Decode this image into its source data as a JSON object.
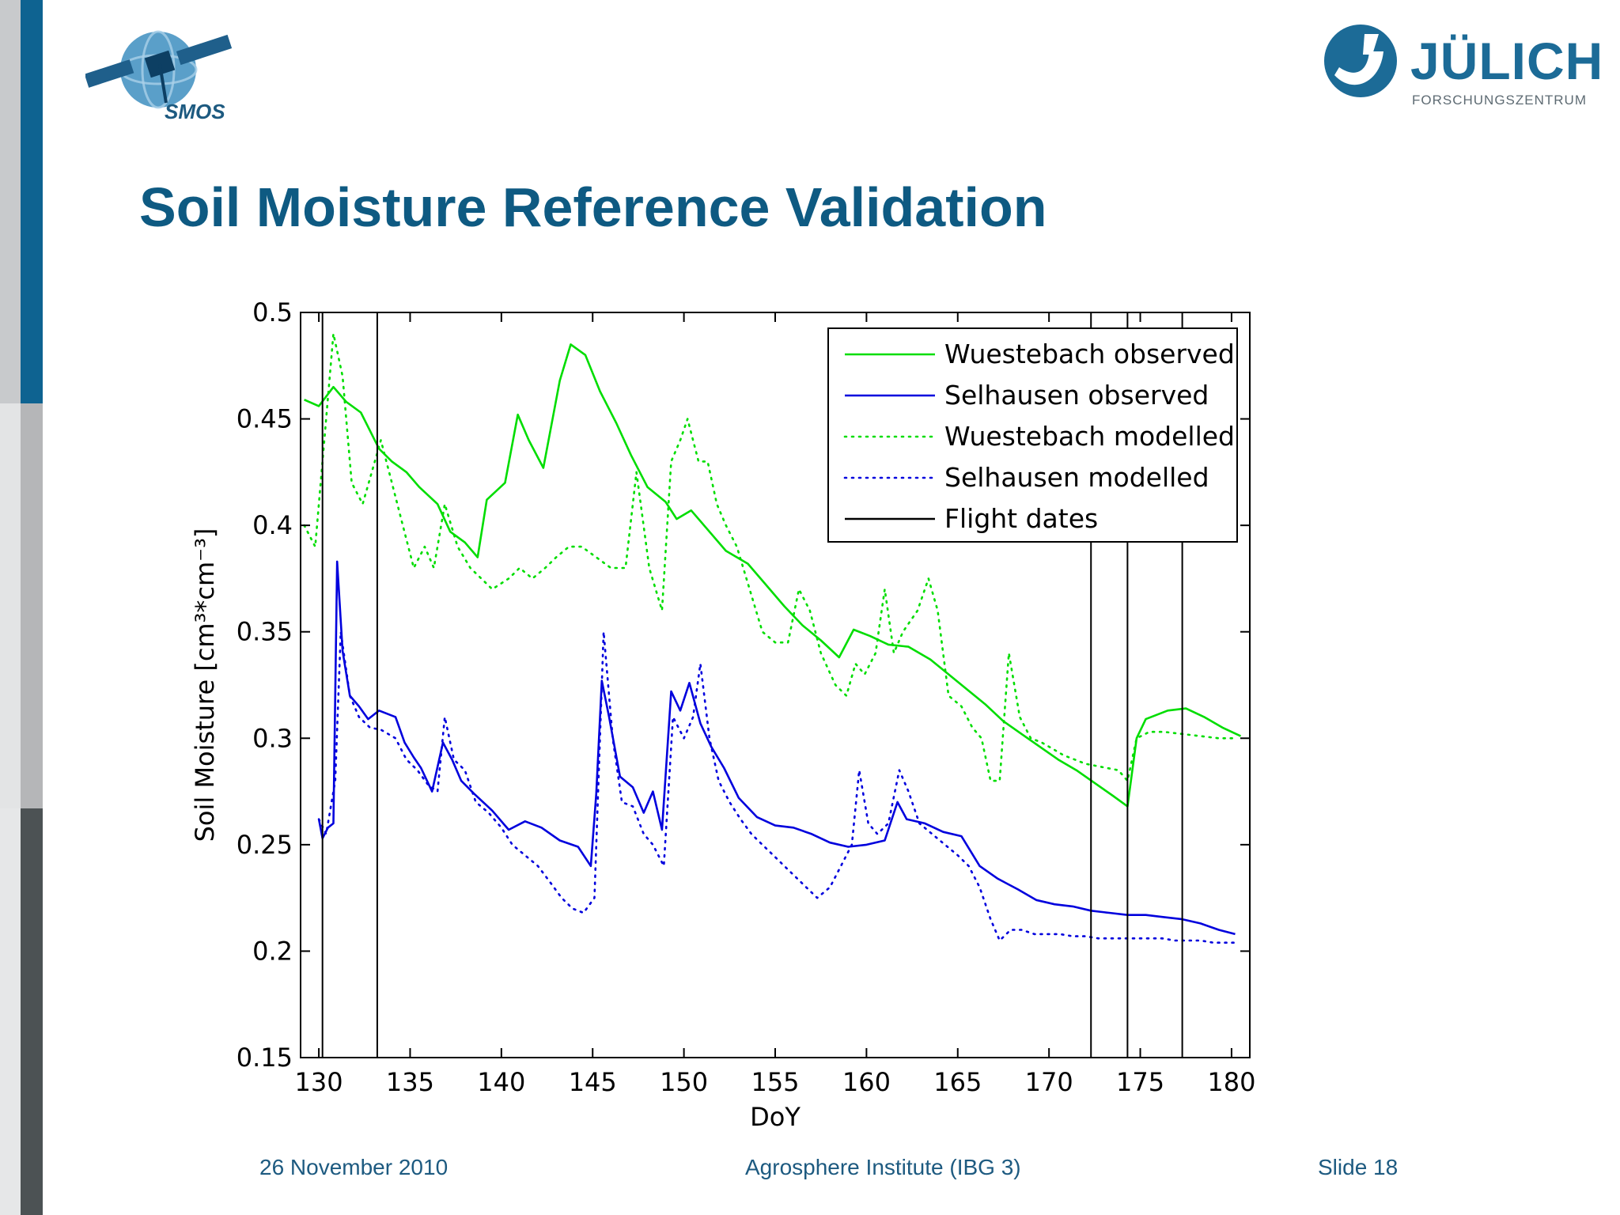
{
  "slide": {
    "title": "Soil Moisture Reference Validation",
    "smos_logo_text": "SMOS",
    "julich_name": "JÜLICH",
    "julich_sub": "FORSCHUNGSZENTRUM",
    "colors": {
      "title": "#0e5a82",
      "sidebar_top": "#0e6391",
      "sidebar_mid": "#b5b6b8",
      "sidebar_bottom": "#4c5254"
    }
  },
  "footer": {
    "date": "26 November 2010",
    "institute": "Agrosphere Institute (IBG 3)",
    "slide_number": "Slide 18"
  },
  "chart_data": {
    "type": "line",
    "xlabel": "DoY",
    "ylabel": "Soil Moisture [cm³*cm⁻³]",
    "xlim": [
      129,
      181
    ],
    "ylim": [
      0.15,
      0.5
    ],
    "xticks": [
      130,
      135,
      140,
      145,
      150,
      155,
      160,
      165,
      170,
      175,
      180
    ],
    "yticks": [
      0.15,
      0.2,
      0.25,
      0.3,
      0.35,
      0.4,
      0.45,
      0.5
    ],
    "grid": false,
    "legend_position": "top-right",
    "flight_dates": [
      130.2,
      133.2,
      172.3,
      174.3,
      177.3
    ],
    "series": [
      {
        "name": "Wuestebach observed",
        "color": "#00dd00",
        "style": "solid",
        "points": [
          [
            129.2,
            0.459
          ],
          [
            130,
            0.456
          ],
          [
            130.8,
            0.465
          ],
          [
            131.5,
            0.458
          ],
          [
            132.3,
            0.453
          ],
          [
            133.3,
            0.436
          ],
          [
            134,
            0.43
          ],
          [
            134.8,
            0.425
          ],
          [
            135.5,
            0.418
          ],
          [
            136.5,
            0.41
          ],
          [
            137.2,
            0.397
          ],
          [
            138,
            0.392
          ],
          [
            138.7,
            0.385
          ],
          [
            139.2,
            0.412
          ],
          [
            140.2,
            0.42
          ],
          [
            140.9,
            0.452
          ],
          [
            141.5,
            0.44
          ],
          [
            142.3,
            0.427
          ],
          [
            143.2,
            0.468
          ],
          [
            143.8,
            0.485
          ],
          [
            144.6,
            0.48
          ],
          [
            145.4,
            0.463
          ],
          [
            146.3,
            0.448
          ],
          [
            147.1,
            0.433
          ],
          [
            148,
            0.418
          ],
          [
            149,
            0.411
          ],
          [
            149.6,
            0.403
          ],
          [
            150.4,
            0.407
          ],
          [
            151.2,
            0.399
          ],
          [
            152.3,
            0.388
          ],
          [
            153.5,
            0.382
          ],
          [
            154.5,
            0.372
          ],
          [
            155.5,
            0.362
          ],
          [
            156.5,
            0.353
          ],
          [
            157.5,
            0.346
          ],
          [
            158.5,
            0.338
          ],
          [
            159.3,
            0.351
          ],
          [
            160.2,
            0.348
          ],
          [
            161.2,
            0.344
          ],
          [
            162.3,
            0.343
          ],
          [
            163.5,
            0.337
          ],
          [
            164.5,
            0.33
          ],
          [
            165.5,
            0.323
          ],
          [
            166.5,
            0.316
          ],
          [
            167.5,
            0.308
          ],
          [
            168.5,
            0.302
          ],
          [
            169.5,
            0.296
          ],
          [
            170.5,
            0.29
          ],
          [
            171.5,
            0.285
          ],
          [
            172.5,
            0.279
          ],
          [
            173.5,
            0.273
          ],
          [
            174.3,
            0.268
          ],
          [
            174.8,
            0.3
          ],
          [
            175.3,
            0.309
          ],
          [
            176.5,
            0.313
          ],
          [
            177.5,
            0.314
          ],
          [
            178.5,
            0.31
          ],
          [
            179.5,
            0.305
          ],
          [
            180.5,
            0.301
          ]
        ]
      },
      {
        "name": "Selhausen observed",
        "color": "#0000dd",
        "style": "solid",
        "points": [
          [
            130,
            0.262
          ],
          [
            130.2,
            0.253
          ],
          [
            130.5,
            0.258
          ],
          [
            130.8,
            0.26
          ],
          [
            131,
            0.383
          ],
          [
            131.3,
            0.341
          ],
          [
            131.7,
            0.32
          ],
          [
            132.2,
            0.315
          ],
          [
            132.7,
            0.309
          ],
          [
            133.3,
            0.313
          ],
          [
            134.2,
            0.31
          ],
          [
            134.7,
            0.298
          ],
          [
            135.2,
            0.291
          ],
          [
            135.6,
            0.286
          ],
          [
            136.2,
            0.275
          ],
          [
            136.8,
            0.298
          ],
          [
            137.3,
            0.29
          ],
          [
            137.8,
            0.28
          ],
          [
            138.5,
            0.274
          ],
          [
            139.5,
            0.266
          ],
          [
            140.4,
            0.257
          ],
          [
            141.3,
            0.261
          ],
          [
            142.2,
            0.258
          ],
          [
            143.2,
            0.252
          ],
          [
            144.2,
            0.249
          ],
          [
            144.9,
            0.24
          ],
          [
            145.2,
            0.274
          ],
          [
            145.5,
            0.327
          ],
          [
            145.9,
            0.31
          ],
          [
            146.5,
            0.282
          ],
          [
            147.2,
            0.277
          ],
          [
            147.8,
            0.265
          ],
          [
            148.3,
            0.275
          ],
          [
            148.8,
            0.257
          ],
          [
            149.3,
            0.322
          ],
          [
            149.8,
            0.313
          ],
          [
            150.3,
            0.326
          ],
          [
            150.9,
            0.307
          ],
          [
            151.5,
            0.296
          ],
          [
            152.2,
            0.286
          ],
          [
            153,
            0.272
          ],
          [
            154,
            0.263
          ],
          [
            155,
            0.259
          ],
          [
            156,
            0.258
          ],
          [
            157,
            0.255
          ],
          [
            158,
            0.251
          ],
          [
            159,
            0.249
          ],
          [
            160,
            0.25
          ],
          [
            161,
            0.252
          ],
          [
            161.7,
            0.27
          ],
          [
            162.2,
            0.262
          ],
          [
            163.2,
            0.26
          ],
          [
            164.2,
            0.256
          ],
          [
            165.2,
            0.254
          ],
          [
            166.2,
            0.24
          ],
          [
            167.2,
            0.234
          ],
          [
            168.3,
            0.229
          ],
          [
            169.3,
            0.224
          ],
          [
            170.3,
            0.222
          ],
          [
            171.3,
            0.221
          ],
          [
            172.3,
            0.219
          ],
          [
            173.3,
            0.218
          ],
          [
            174.3,
            0.217
          ],
          [
            175.3,
            0.217
          ],
          [
            176.3,
            0.216
          ],
          [
            177.3,
            0.215
          ],
          [
            178.3,
            0.213
          ],
          [
            179.3,
            0.21
          ],
          [
            180.2,
            0.208
          ]
        ]
      },
      {
        "name": "Wuestebach modelled",
        "color": "#00dd00",
        "style": "dotted",
        "points": [
          [
            129.2,
            0.4
          ],
          [
            129.8,
            0.39
          ],
          [
            130.3,
            0.44
          ],
          [
            130.8,
            0.49
          ],
          [
            131.3,
            0.47
          ],
          [
            131.8,
            0.42
          ],
          [
            132.4,
            0.41
          ],
          [
            133.4,
            0.44
          ],
          [
            134,
            0.42
          ],
          [
            134.6,
            0.4
          ],
          [
            135.2,
            0.38
          ],
          [
            135.8,
            0.39
          ],
          [
            136.3,
            0.38
          ],
          [
            136.9,
            0.41
          ],
          [
            137.6,
            0.39
          ],
          [
            138.3,
            0.38
          ],
          [
            138.9,
            0.375
          ],
          [
            139.5,
            0.37
          ],
          [
            140.4,
            0.375
          ],
          [
            141,
            0.38
          ],
          [
            141.7,
            0.375
          ],
          [
            142.4,
            0.38
          ],
          [
            143,
            0.385
          ],
          [
            143.7,
            0.39
          ],
          [
            144.4,
            0.39
          ],
          [
            145.2,
            0.385
          ],
          [
            146,
            0.38
          ],
          [
            146.8,
            0.38
          ],
          [
            147.4,
            0.425
          ],
          [
            148.1,
            0.38
          ],
          [
            148.8,
            0.36
          ],
          [
            149.3,
            0.43
          ],
          [
            149.8,
            0.44
          ],
          [
            150.2,
            0.45
          ],
          [
            150.8,
            0.43
          ],
          [
            151.3,
            0.43
          ],
          [
            151.8,
            0.41
          ],
          [
            152.3,
            0.4
          ],
          [
            152.9,
            0.39
          ],
          [
            153.6,
            0.37
          ],
          [
            154.3,
            0.35
          ],
          [
            155,
            0.345
          ],
          [
            155.7,
            0.345
          ],
          [
            156.3,
            0.37
          ],
          [
            156.9,
            0.36
          ],
          [
            157.5,
            0.34
          ],
          [
            158.3,
            0.325
          ],
          [
            158.9,
            0.32
          ],
          [
            159.4,
            0.335
          ],
          [
            159.9,
            0.33
          ],
          [
            160.5,
            0.34
          ],
          [
            161,
            0.37
          ],
          [
            161.5,
            0.34
          ],
          [
            162,
            0.35
          ],
          [
            162.8,
            0.36
          ],
          [
            163.4,
            0.375
          ],
          [
            163.9,
            0.36
          ],
          [
            164.5,
            0.32
          ],
          [
            165.2,
            0.315
          ],
          [
            165.8,
            0.305
          ],
          [
            166.3,
            0.3
          ],
          [
            166.8,
            0.28
          ],
          [
            167.3,
            0.28
          ],
          [
            167.8,
            0.34
          ],
          [
            168.4,
            0.31
          ],
          [
            169,
            0.3
          ],
          [
            169.6,
            0.298
          ],
          [
            170.2,
            0.295
          ],
          [
            170.8,
            0.292
          ],
          [
            171.4,
            0.29
          ],
          [
            172,
            0.288
          ],
          [
            172.6,
            0.287
          ],
          [
            173.2,
            0.286
          ],
          [
            173.8,
            0.285
          ],
          [
            174.3,
            0.28
          ],
          [
            174.8,
            0.3
          ],
          [
            175.5,
            0.303
          ],
          [
            176.3,
            0.303
          ],
          [
            177.3,
            0.302
          ],
          [
            178.3,
            0.301
          ],
          [
            179.3,
            0.3
          ],
          [
            180.3,
            0.3
          ]
        ]
      },
      {
        "name": "Selhausen modelled",
        "color": "#0000dd",
        "style": "dotted",
        "points": [
          [
            130,
            0.262
          ],
          [
            130.4,
            0.255
          ],
          [
            130.9,
            0.28
          ],
          [
            131.2,
            0.35
          ],
          [
            131.7,
            0.32
          ],
          [
            132.2,
            0.31
          ],
          [
            132.8,
            0.305
          ],
          [
            133.4,
            0.304
          ],
          [
            134.2,
            0.3
          ],
          [
            134.8,
            0.29
          ],
          [
            135.4,
            0.285
          ],
          [
            136,
            0.278
          ],
          [
            136.5,
            0.275
          ],
          [
            136.9,
            0.31
          ],
          [
            137.4,
            0.29
          ],
          [
            138,
            0.285
          ],
          [
            138.6,
            0.27
          ],
          [
            139.3,
            0.265
          ],
          [
            140,
            0.258
          ],
          [
            140.6,
            0.25
          ],
          [
            141.3,
            0.245
          ],
          [
            142,
            0.24
          ],
          [
            142.7,
            0.232
          ],
          [
            143.3,
            0.225
          ],
          [
            143.9,
            0.22
          ],
          [
            144.5,
            0.218
          ],
          [
            145.1,
            0.225
          ],
          [
            145.6,
            0.35
          ],
          [
            146.1,
            0.3
          ],
          [
            146.6,
            0.27
          ],
          [
            147.2,
            0.268
          ],
          [
            147.8,
            0.255
          ],
          [
            148.3,
            0.25
          ],
          [
            148.9,
            0.24
          ],
          [
            149.4,
            0.31
          ],
          [
            150,
            0.3
          ],
          [
            150.5,
            0.31
          ],
          [
            150.9,
            0.335
          ],
          [
            151.4,
            0.3
          ],
          [
            151.9,
            0.28
          ],
          [
            152.5,
            0.27
          ],
          [
            153.1,
            0.262
          ],
          [
            153.7,
            0.255
          ],
          [
            154.3,
            0.25
          ],
          [
            154.9,
            0.245
          ],
          [
            155.5,
            0.24
          ],
          [
            156.1,
            0.235
          ],
          [
            156.7,
            0.23
          ],
          [
            157.3,
            0.225
          ],
          [
            158,
            0.23
          ],
          [
            158.6,
            0.24
          ],
          [
            159.2,
            0.25
          ],
          [
            159.6,
            0.285
          ],
          [
            160.1,
            0.26
          ],
          [
            160.6,
            0.255
          ],
          [
            161.2,
            0.26
          ],
          [
            161.8,
            0.285
          ],
          [
            162.3,
            0.275
          ],
          [
            162.9,
            0.26
          ],
          [
            163.6,
            0.255
          ],
          [
            164.3,
            0.25
          ],
          [
            165,
            0.245
          ],
          [
            165.6,
            0.24
          ],
          [
            166.2,
            0.23
          ],
          [
            166.8,
            0.215
          ],
          [
            167.3,
            0.205
          ],
          [
            167.9,
            0.21
          ],
          [
            168.5,
            0.21
          ],
          [
            169.2,
            0.208
          ],
          [
            169.9,
            0.208
          ],
          [
            170.6,
            0.208
          ],
          [
            171.3,
            0.207
          ],
          [
            172,
            0.207
          ],
          [
            172.7,
            0.206
          ],
          [
            173.4,
            0.206
          ],
          [
            174.1,
            0.206
          ],
          [
            174.8,
            0.206
          ],
          [
            175.5,
            0.206
          ],
          [
            176.2,
            0.206
          ],
          [
            176.9,
            0.205
          ],
          [
            177.6,
            0.205
          ],
          [
            178.3,
            0.205
          ],
          [
            179,
            0.204
          ],
          [
            179.7,
            0.204
          ],
          [
            180.4,
            0.204
          ]
        ]
      },
      {
        "name": "Flight dates",
        "color": "#000000",
        "style": "solid",
        "points": []
      }
    ]
  }
}
